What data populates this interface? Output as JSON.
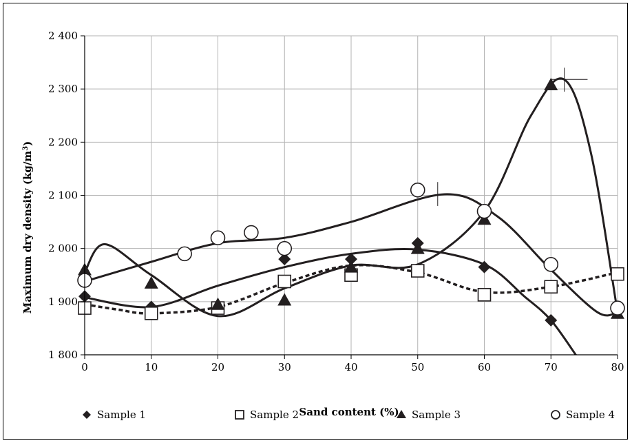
{
  "chart_data": {
    "type": "scatter",
    "xlabel": "Sand content (%)",
    "ylabel_main": "Maximum dry density (kg/m",
    "ylabel_sup": "3",
    "ylabel_end": ")",
    "xlim": [
      0,
      80
    ],
    "ylim": [
      1800,
      2400
    ],
    "x_ticks": [
      0,
      10,
      20,
      30,
      40,
      50,
      60,
      70,
      80
    ],
    "x_tick_labels": [
      "0",
      "10",
      "20",
      "30",
      "40",
      "50",
      "60",
      "70",
      "80"
    ],
    "y_ticks": [
      1800,
      1900,
      2000,
      2100,
      2200,
      2300,
      2400
    ],
    "y_tick_labels": [
      "1 800",
      "1 900",
      "2 000",
      "2 100",
      "2 200",
      "2 300",
      "2 400"
    ],
    "grid": true,
    "legend_position": "bottom",
    "series": [
      {
        "name": "Sample 1",
        "marker": "diamond",
        "line": "solid",
        "points": [
          [
            0,
            1910
          ],
          [
            10,
            1890
          ],
          [
            30,
            1980
          ],
          [
            40,
            1980
          ],
          [
            50,
            2010
          ],
          [
            60,
            1965
          ],
          [
            70,
            1865
          ]
        ],
        "curve": [
          [
            0,
            1908
          ],
          [
            10,
            1890
          ],
          [
            20,
            1930
          ],
          [
            30,
            1965
          ],
          [
            40,
            1990
          ],
          [
            50,
            1998
          ],
          [
            60,
            1970
          ],
          [
            66,
            1910
          ],
          [
            70,
            1865
          ],
          [
            74,
            1795
          ]
        ]
      },
      {
        "name": "Sample 2",
        "marker": "square",
        "line": "dashed",
        "points": [
          [
            0,
            1888
          ],
          [
            10,
            1878
          ],
          [
            20,
            1888
          ],
          [
            30,
            1938
          ],
          [
            40,
            1950
          ],
          [
            50,
            1958
          ],
          [
            60,
            1913
          ],
          [
            70,
            1928
          ],
          [
            80,
            1952
          ]
        ],
        "curve": [
          [
            0,
            1895
          ],
          [
            5,
            1885
          ],
          [
            10,
            1878
          ],
          [
            20,
            1890
          ],
          [
            30,
            1935
          ],
          [
            40,
            1968
          ],
          [
            50,
            1955
          ],
          [
            60,
            1918
          ],
          [
            70,
            1928
          ],
          [
            80,
            1955
          ]
        ]
      },
      {
        "name": "Sample 3",
        "marker": "triangle",
        "line": "solid",
        "points": [
          [
            0,
            1960
          ],
          [
            10,
            1935
          ],
          [
            20,
            1895
          ],
          [
            30,
            1903
          ],
          [
            40,
            1965
          ],
          [
            50,
            2000
          ],
          [
            60,
            2055
          ],
          [
            70,
            2308
          ],
          [
            80,
            1878
          ]
        ],
        "curve": [
          [
            0,
            1955
          ],
          [
            3,
            2008
          ],
          [
            10,
            1950
          ],
          [
            20,
            1873
          ],
          [
            30,
            1925
          ],
          [
            40,
            1968
          ],
          [
            50,
            1970
          ],
          [
            60,
            2070
          ],
          [
            67,
            2250
          ],
          [
            72,
            2318
          ],
          [
            76,
            2180
          ],
          [
            80,
            1880
          ]
        ]
      },
      {
        "name": "Sample 4",
        "marker": "circle",
        "line": "solid",
        "points": [
          [
            0,
            1940
          ],
          [
            15,
            1990
          ],
          [
            20,
            2020
          ],
          [
            25,
            2030
          ],
          [
            30,
            2000
          ],
          [
            50,
            2110
          ],
          [
            60,
            2070
          ],
          [
            70,
            1970
          ],
          [
            80,
            1888
          ]
        ],
        "curve": [
          [
            0,
            1938
          ],
          [
            10,
            1975
          ],
          [
            20,
            2010
          ],
          [
            30,
            2020
          ],
          [
            40,
            2050
          ],
          [
            54,
            2102
          ],
          [
            62,
            2060
          ],
          [
            70,
            1960
          ],
          [
            77,
            1880
          ],
          [
            80,
            1880
          ]
        ]
      }
    ]
  },
  "colors": {
    "line": "#231f20",
    "grid": "#b3b3b3",
    "marker_fill": "#ffffff"
  }
}
